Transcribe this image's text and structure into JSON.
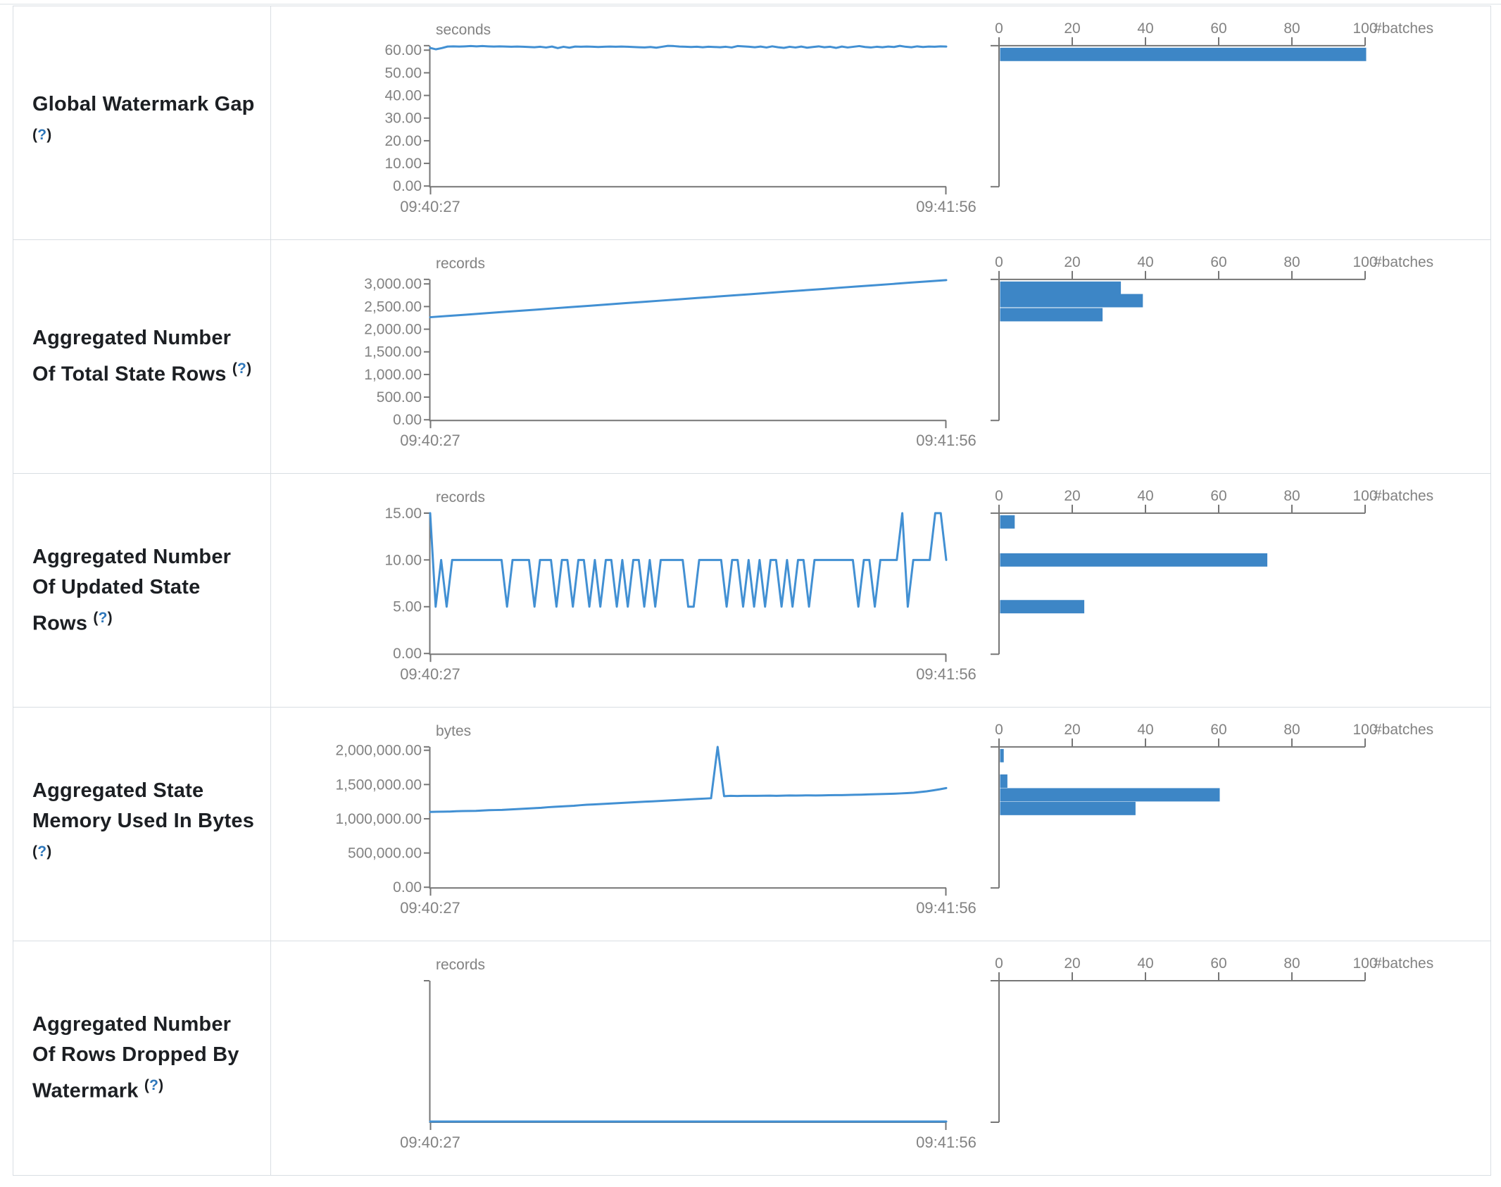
{
  "colors": {
    "bar_blue": "#3d86c6",
    "line_blue": "#4290d3",
    "axis_gray": "#767676",
    "chart_text_gray": "#828282",
    "label_dark": "#1c1f23",
    "help_blue": "#2e77bb",
    "border_gray": "#d9dee3"
  },
  "x_axis_labels": {
    "start": "09:40:27",
    "end": "09:41:56"
  },
  "histogram_axis": {
    "ticks": [
      0,
      20,
      40,
      60,
      80,
      100
    ],
    "unit_label": "#batches"
  },
  "rows": [
    {
      "label": "Global Watermark Gap",
      "help": {
        "open": "(",
        "q": "?",
        "close": ")"
      },
      "chart_data": {
        "type": "line",
        "title": "seconds",
        "y_ticks": [
          60,
          50,
          40,
          30,
          20,
          10,
          0
        ],
        "y_max": 62,
        "x_start": "09:40:27",
        "x_end": "09:41:56",
        "values": [
          61.0,
          60.4,
          60.9,
          61.6,
          61.7,
          61.6,
          61.7,
          61.8,
          61.7,
          61.8,
          61.7,
          61.6,
          61.7,
          61.6,
          61.5,
          61.6,
          61.5,
          61.4,
          61.3,
          61.5,
          61.2,
          61.6,
          60.9,
          61.5,
          61.1,
          61.6,
          61.5,
          61.6,
          61.5,
          61.4,
          61.5,
          61.6,
          61.5,
          61.6,
          61.5,
          61.4,
          61.3,
          61.2,
          61.4,
          61.1,
          61.5,
          61.9,
          61.8,
          61.6,
          61.5,
          61.4,
          61.5,
          61.3,
          61.5,
          61.4,
          61.3,
          61.5,
          61.2,
          61.8,
          61.7,
          61.5,
          61.3,
          61.6,
          61.2,
          61.7,
          61.3,
          61.0,
          61.5,
          61.2,
          61.6,
          61.1,
          61.4,
          61.7,
          61.3,
          61.5,
          61.0,
          61.6,
          61.2,
          61.5,
          61.8,
          61.4,
          61.2,
          61.5,
          61.3,
          61.6,
          61.4,
          61.9,
          61.5,
          61.3,
          61.7,
          61.4,
          61.6,
          61.5,
          61.7,
          61.6
        ]
      },
      "histogram_data": {
        "type": "bar-horizontal",
        "unit_label": "#batches",
        "x_ticks": [
          0,
          20,
          40,
          60,
          80,
          100
        ],
        "bars": [
          {
            "bin_value": 61,
            "count": 100
          }
        ]
      }
    },
    {
      "label": "Aggregated Number Of Total State Rows",
      "help": {
        "open": "(",
        "q": "?",
        "close": ")"
      },
      "chart_data": {
        "type": "line",
        "title": "records",
        "y_ticks": [
          3000,
          2500,
          2000,
          1500,
          1000,
          500,
          0
        ],
        "y_max": 3100,
        "x_start": "09:40:27",
        "x_end": "09:41:56",
        "values": [
          2265,
          2293,
          2321,
          2350,
          2378,
          2406,
          2434,
          2463,
          2491,
          2519,
          2547,
          2576,
          2604,
          2632,
          2660,
          2689,
          2717,
          2745,
          2773,
          2802,
          2830,
          2858,
          2886,
          2915,
          2943,
          2971,
          2999,
          3028,
          3056,
          3085
        ]
      },
      "histogram_data": {
        "type": "bar-horizontal",
        "unit_label": "#batches",
        "x_ticks": [
          0,
          20,
          40,
          60,
          80,
          100
        ],
        "bars": [
          {
            "bin_value": 2940,
            "count": 33
          },
          {
            "bin_value": 2630,
            "count": 39
          },
          {
            "bin_value": 2320,
            "count": 28
          }
        ]
      }
    },
    {
      "label": "Aggregated Number Of Updated State Rows",
      "help": {
        "open": "(",
        "q": "?",
        "close": ")"
      },
      "chart_data": {
        "type": "line",
        "title": "records",
        "y_ticks": [
          15,
          10,
          5,
          0
        ],
        "y_max": 15,
        "x_start": "09:40:27",
        "x_end": "09:41:56",
        "values": [
          15,
          5,
          10,
          5,
          10,
          10,
          10,
          10,
          10,
          10,
          10,
          10,
          10,
          10,
          5,
          10,
          10,
          10,
          10,
          5,
          10,
          10,
          10,
          5,
          10,
          10,
          5,
          10,
          10,
          5,
          10,
          5,
          10,
          10,
          5,
          10,
          5,
          10,
          10,
          5,
          10,
          5,
          10,
          10,
          10,
          10,
          10,
          5,
          5,
          10,
          10,
          10,
          10,
          10,
          5,
          10,
          10,
          5,
          10,
          5,
          10,
          5,
          10,
          10,
          5,
          10,
          5,
          10,
          10,
          5,
          10,
          10,
          10,
          10,
          10,
          10,
          10,
          10,
          5,
          10,
          10,
          5,
          10,
          10,
          10,
          10,
          15,
          5,
          10,
          10,
          10,
          10,
          15,
          15,
          10
        ]
      },
      "histogram_data": {
        "type": "bar-horizontal",
        "unit_label": "#batches",
        "x_ticks": [
          0,
          20,
          40,
          60,
          80,
          100
        ],
        "bars": [
          {
            "bin_value": 15,
            "count": 4
          },
          {
            "bin_value": 10,
            "count": 73
          },
          {
            "bin_value": 5,
            "count": 23
          }
        ]
      }
    },
    {
      "label": "Aggregated State Memory Used In Bytes",
      "help": {
        "open": "(",
        "q": "?",
        "close": ")"
      },
      "chart_data": {
        "type": "line",
        "title": "bytes",
        "y_ticks": [
          2000000,
          1500000,
          1000000,
          500000,
          0
        ],
        "y_max": 2050000,
        "x_start": "09:40:27",
        "x_end": "09:41:56",
        "values": [
          1100000,
          1102000,
          1104000,
          1105000,
          1110000,
          1112000,
          1114000,
          1115000,
          1120000,
          1125000,
          1128000,
          1130000,
          1135000,
          1140000,
          1145000,
          1150000,
          1155000,
          1160000,
          1168000,
          1175000,
          1180000,
          1185000,
          1190000,
          1198000,
          1205000,
          1210000,
          1215000,
          1220000,
          1225000,
          1230000,
          1235000,
          1240000,
          1245000,
          1250000,
          1255000,
          1260000,
          1265000,
          1270000,
          1275000,
          1280000,
          1285000,
          1290000,
          1295000,
          1300000,
          2050000,
          1330000,
          1335000,
          1333000,
          1335000,
          1336000,
          1335000,
          1337000,
          1338000,
          1336000,
          1338000,
          1340000,
          1339000,
          1341000,
          1342000,
          1340000,
          1342000,
          1344000,
          1345000,
          1346000,
          1348000,
          1350000,
          1352000,
          1355000,
          1358000,
          1360000,
          1363000,
          1366000,
          1370000,
          1375000,
          1380000,
          1390000,
          1400000,
          1415000,
          1430000,
          1448000
        ]
      },
      "histogram_data": {
        "type": "bar-horizontal",
        "unit_label": "#batches",
        "x_ticks": [
          0,
          20,
          40,
          60,
          80,
          100
        ],
        "bars": [
          {
            "bin_value": 1950000,
            "count": 1
          },
          {
            "bin_value": 1550000,
            "count": 2
          },
          {
            "bin_value": 1350000,
            "count": 60
          },
          {
            "bin_value": 1150000,
            "count": 37
          }
        ]
      }
    },
    {
      "label": "Aggregated Number Of Rows Dropped By Watermark",
      "help": {
        "open": "(",
        "q": "?",
        "close": ")"
      },
      "chart_data": {
        "type": "line",
        "title": "records",
        "y_ticks": [],
        "y_max": 1,
        "x_start": "09:40:27",
        "x_end": "09:41:56",
        "values": [
          0,
          0
        ]
      },
      "histogram_data": {
        "type": "bar-horizontal",
        "unit_label": "#batches",
        "x_ticks": [
          0,
          20,
          40,
          60,
          80,
          100
        ],
        "bars": []
      }
    }
  ]
}
